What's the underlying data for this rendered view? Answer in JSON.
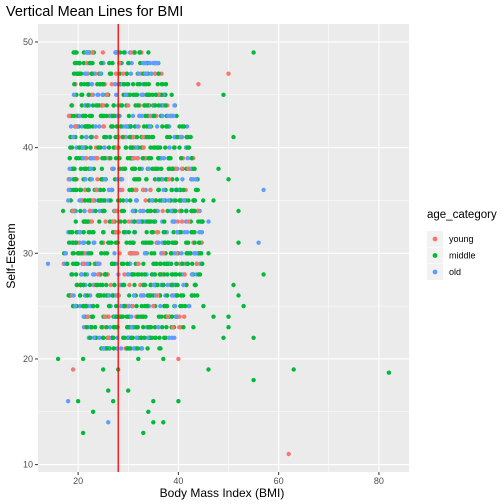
{
  "chart_data": {
    "type": "scatter",
    "title": "Vertical Mean Lines for BMI",
    "xlabel": "Body Mass Index (BMI)",
    "ylabel": "Self-Esteem",
    "xlim": [
      12,
      86
    ],
    "ylim": [
      9.3,
      51.7
    ],
    "x_ticks": [
      20,
      40,
      60,
      80
    ],
    "y_ticks": [
      10,
      20,
      30,
      40,
      50
    ],
    "grid": true,
    "mean_line": {
      "x": 28,
      "color": "#ff0000"
    },
    "legend": {
      "title": "age_category",
      "position": "right",
      "entries": [
        {
          "label": "young",
          "color": "#F8766D"
        },
        {
          "label": "middle",
          "color": "#00BA38"
        },
        {
          "label": "old",
          "color": "#619CFF"
        }
      ]
    },
    "series": [
      {
        "key": "middle",
        "color": "#00BA38",
        "points": [
          [
            17,
            34
          ],
          [
            16,
            20
          ],
          [
            20,
            16
          ],
          [
            21,
            13
          ],
          [
            23,
            15
          ],
          [
            21,
            20
          ],
          [
            35,
            14
          ],
          [
            34,
            15
          ],
          [
            33,
            13
          ],
          [
            37,
            14
          ],
          [
            35,
            16
          ],
          [
            30,
            17
          ],
          [
            32,
            20
          ],
          [
            37,
            20
          ],
          [
            40,
            16
          ],
          [
            41,
            23
          ],
          [
            43,
            23
          ],
          [
            45,
            25
          ],
          [
            46,
            30
          ],
          [
            47,
            35
          ],
          [
            48,
            38
          ],
          [
            49,
            45
          ],
          [
            51,
            41
          ],
          [
            50,
            37
          ],
          [
            52,
            34
          ],
          [
            52,
            31
          ],
          [
            53,
            25
          ],
          [
            50,
            24
          ],
          [
            49,
            22
          ],
          [
            46,
            19
          ],
          [
            55,
            49
          ],
          [
            57,
            28
          ],
          [
            51,
            27
          ],
          [
            50,
            23
          ],
          [
            55,
            18
          ],
          [
            63,
            19
          ],
          [
            82,
            18.7
          ],
          [
            55,
            22
          ],
          [
            47,
            24
          ],
          [
            52,
            26
          ],
          [
            25,
            19
          ],
          [
            27,
            16
          ],
          [
            29,
            22
          ],
          [
            23,
            25
          ],
          [
            26,
            17
          ],
          [
            28,
            19
          ]
        ]
      },
      {
        "key": "young",
        "color": "#F8766D",
        "points": [
          [
            62,
            11
          ],
          [
            50,
            47
          ],
          [
            22,
            24
          ],
          [
            19,
            19
          ],
          [
            40,
            20
          ],
          [
            37,
            30
          ],
          [
            33,
            36
          ],
          [
            44,
            46
          ],
          [
            25,
            42
          ],
          [
            30,
            44
          ],
          [
            27,
            33
          ],
          [
            24,
            28
          ],
          [
            31,
            39
          ],
          [
            26,
            22
          ],
          [
            42,
            33
          ],
          [
            35,
            25
          ],
          [
            29,
            47
          ],
          [
            23,
            35
          ],
          [
            28,
            26
          ]
        ]
      },
      {
        "key": "old",
        "color": "#619CFF",
        "points": [
          [
            18,
            16
          ],
          [
            26,
            14
          ],
          [
            25,
            21
          ],
          [
            21,
            39
          ],
          [
            56,
            31
          ],
          [
            57,
            36
          ],
          [
            14,
            29
          ],
          [
            19,
            41
          ],
          [
            46,
            33
          ],
          [
            22,
            49
          ],
          [
            33,
            48
          ],
          [
            39,
            43
          ],
          [
            41,
            27
          ],
          [
            36,
            31
          ],
          [
            27,
            38
          ],
          [
            30,
            28
          ],
          [
            38,
            35
          ],
          [
            24,
            45
          ]
        ]
      }
    ],
    "dense_band": {
      "y_from": 21,
      "y_to": 49,
      "x_left": [
        24,
        22,
        21,
        20,
        19,
        18,
        18,
        18,
        17,
        17,
        18,
        18,
        18,
        18,
        18,
        18,
        18,
        18,
        18,
        18,
        18,
        18,
        18,
        18,
        19,
        19,
        19,
        19,
        19
      ],
      "x_right": [
        37,
        40,
        41,
        42,
        43,
        44,
        44,
        45,
        45,
        45,
        45,
        45,
        45,
        45,
        45,
        45,
        44,
        44,
        43,
        43,
        43,
        42,
        41,
        40,
        39,
        38,
        37,
        36,
        35
      ]
    }
  }
}
